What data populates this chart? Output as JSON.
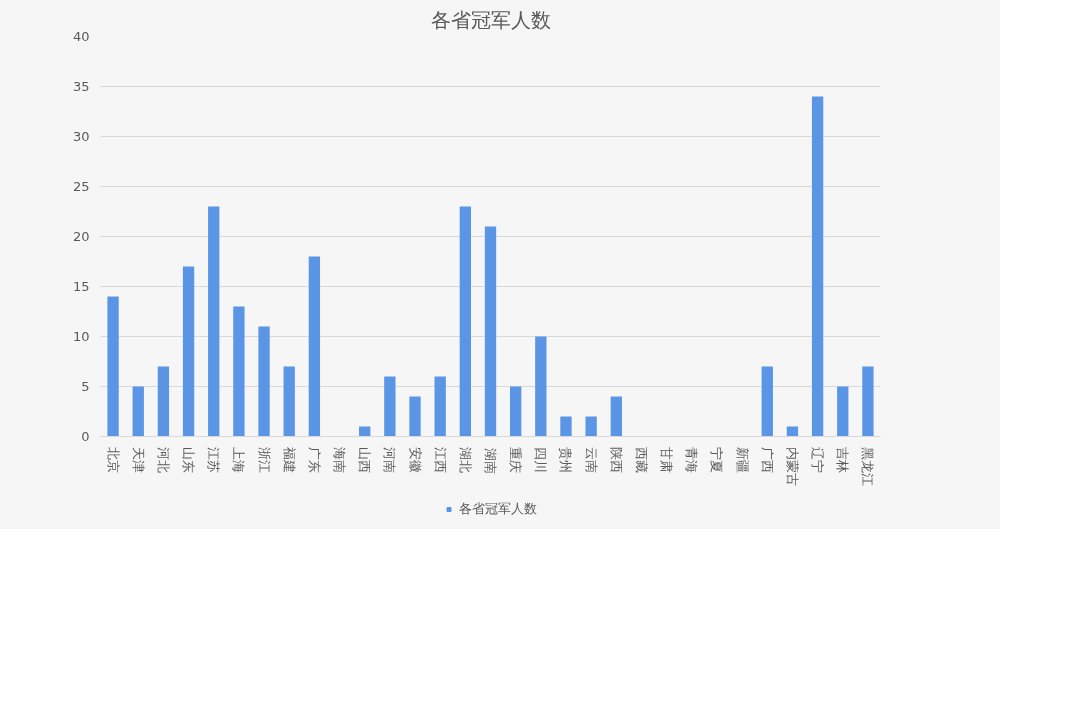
{
  "chart_data": {
    "type": "bar",
    "title": "各省冠军人数",
    "categories": [
      "北京",
      "天津",
      "河北",
      "山东",
      "江苏",
      "上海",
      "浙江",
      "福建",
      "广东",
      "海南",
      "山西",
      "河南",
      "安徽",
      "江西",
      "湖北",
      "湖南",
      "重庆",
      "四川",
      "贵州",
      "云南",
      "陕西",
      "西藏",
      "甘肃",
      "青海",
      "宁夏",
      "新疆",
      "广西",
      "内蒙古",
      "辽宁",
      "吉林",
      "黑龙江"
    ],
    "series": [
      {
        "name": "各省冠军人数",
        "color": "#5b95e6",
        "values": [
          14,
          5,
          7,
          17,
          23,
          13,
          11,
          7,
          18,
          0,
          1,
          6,
          4,
          6,
          23,
          21,
          5,
          10,
          2,
          2,
          4,
          0,
          0,
          0,
          0,
          0,
          7,
          1,
          34,
          5,
          7
        ]
      }
    ],
    "ylim": [
      0,
      40
    ],
    "yticks": [
      0,
      5,
      10,
      15,
      20,
      25,
      30,
      35,
      40
    ],
    "grid": "y",
    "legend": "bottom"
  }
}
